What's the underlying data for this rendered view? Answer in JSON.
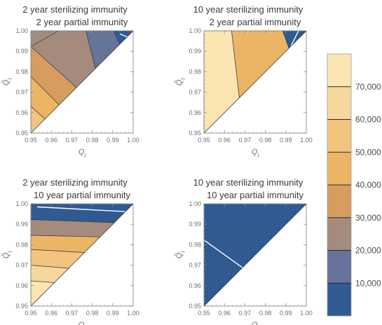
{
  "figure": {
    "colorbar": {
      "min": 0,
      "max": 80000,
      "tick_labels": [
        "10,000",
        "20,000",
        "30,000",
        "40,000",
        "50,000",
        "60,000",
        "70,000"
      ],
      "tick_values": [
        10000,
        20000,
        30000,
        40000,
        50000,
        60000,
        70000
      ],
      "colors": [
        "#2f5a92",
        "#66739a",
        "#a58b7d",
        "#d79d5e",
        "#ecb565",
        "#f1c57e",
        "#f6d79c",
        "#fbe6b3"
      ]
    }
  },
  "chart_data": [
    {
      "type": "heatmap",
      "subtype": "contour",
      "title": "2 year sterilizing immunity",
      "subtitle": "2 year partial immunity",
      "xlabel": "Q_l",
      "ylabel": "Q̃_l",
      "xlim": [
        0.95,
        1.0
      ],
      "ylim": [
        0.95,
        1.0
      ],
      "xticks": [
        "0.95",
        "0.96",
        "0.97",
        "0.98",
        "0.99",
        "1.00"
      ],
      "yticks": [
        "0.95",
        "0.96",
        "0.97",
        "0.98",
        "0.99",
        "1.00"
      ],
      "domain": "y >= x",
      "bands": [
        {
          "range": [
            0,
            10000
          ],
          "polygon": [
            [
              0.9904,
              1.0
            ],
            [
              1.0,
              1.0
            ],
            [
              0.9935,
              0.9935
            ]
          ]
        },
        {
          "range": [
            10000,
            20000
          ],
          "polygon": [
            [
              0.9769,
              1.0
            ],
            [
              0.9904,
              1.0
            ],
            [
              0.9935,
              0.9935
            ],
            [
              0.9815,
              0.9815
            ]
          ]
        },
        {
          "range": [
            20000,
            30000
          ],
          "polygon": [
            [
              0.9635,
              1.0
            ],
            [
              0.9769,
              1.0
            ],
            [
              0.9815,
              0.9815
            ],
            [
              0.9723,
              0.9723
            ],
            [
              0.95,
              0.9923
            ]
          ]
        },
        {
          "range": [
            30000,
            40000
          ],
          "polygon": [
            [
              0.95,
              0.9923
            ],
            [
              0.9723,
              0.9723
            ],
            [
              0.9638,
              0.9638
            ],
            [
              0.95,
              0.9777
            ]
          ]
        },
        {
          "range": [
            40000,
            50000
          ],
          "polygon": [
            [
              0.95,
              0.9777
            ],
            [
              0.9638,
              0.9638
            ],
            [
              0.9569,
              0.9569
            ],
            [
              0.95,
              0.9631
            ]
          ]
        },
        {
          "range": [
            50000,
            60000
          ],
          "polygon": [
            [
              0.95,
              0.9631
            ],
            [
              0.9569,
              0.9569
            ],
            [
              0.95,
              0.95
            ]
          ]
        },
        {
          "range": [
            60000,
            70000
          ],
          "polygon": [
            [
              0.95,
              0.95
            ],
            [
              0.95,
              0.95
            ],
            [
              0.95,
              0.95
            ]
          ]
        },
        {
          "range": [
            70000,
            80000
          ],
          "polygon": [
            [
              0.95,
              0.95
            ],
            [
              0.95,
              0.95
            ],
            [
              0.95,
              0.95
            ]
          ]
        },
        {
          "range": [
            20000,
            30000
          ],
          "polygon": [
            [
              0.95,
              1.0
            ],
            [
              0.9635,
              1.0
            ],
            [
              0.95,
              0.9923
            ]
          ]
        }
      ],
      "white_lines": [
        [
          [
            0.9935,
            0.9985
          ],
          [
            1.0,
            0.9958
          ]
        ]
      ]
    },
    {
      "type": "heatmap",
      "subtype": "contour",
      "title": "10 year sterilizing immunity",
      "subtitle": "2 year partial immunity",
      "xlabel": "Q_l",
      "ylabel": "Q̃_l",
      "xlim": [
        0.95,
        1.0
      ],
      "ylim": [
        0.95,
        1.0
      ],
      "xticks": [
        "0.95",
        "0.96",
        "0.97",
        "0.98",
        "0.99",
        "1.00"
      ],
      "yticks": [
        "0.95",
        "0.96",
        "0.97",
        "0.98",
        "0.99",
        "1.00"
      ],
      "domain": "y >= x",
      "bands": [
        {
          "range": [
            70000,
            80000
          ],
          "polygon": [
            [
              0.95,
              1.0
            ],
            [
              0.9635,
              1.0
            ],
            [
              0.9673,
              0.9673
            ],
            [
              0.95,
              0.95
            ]
          ]
        },
        {
          "range": [
            40000,
            50000
          ],
          "polygon": [
            [
              0.9635,
              1.0
            ],
            [
              0.9885,
              1.0
            ],
            [
              0.9915,
              0.9915
            ],
            [
              0.9673,
              0.9673
            ]
          ]
        },
        {
          "range": [
            0,
            10000
          ],
          "polygon": [
            [
              0.9885,
              1.0
            ],
            [
              1.0,
              1.0
            ],
            [
              0.9915,
              0.9915
            ]
          ]
        }
      ],
      "white_lines": [
        [
          [
            0.9962,
            1.0
          ],
          [
            0.9925,
            0.9925
          ]
        ]
      ]
    },
    {
      "type": "heatmap",
      "subtype": "contour",
      "title": "2 year sterilizing immunity",
      "subtitle": "10 year partial immunity",
      "xlabel": "Q_l",
      "ylabel": "Q̃_l",
      "xlim": [
        0.95,
        1.0
      ],
      "ylim": [
        0.95,
        1.0
      ],
      "xticks": [
        "0.95",
        "0.96",
        "0.97",
        "0.98",
        "0.99",
        "1.00"
      ],
      "yticks": [
        "0.95",
        "0.96",
        "0.97",
        "0.98",
        "0.99",
        "1.00"
      ],
      "domain": "y >= x",
      "bands": [
        {
          "range": [
            0,
            10000
          ],
          "polygon": [
            [
              0.95,
              1.0
            ],
            [
              1.0,
              1.0
            ],
            [
              0.9908,
              0.9908
            ],
            [
              0.95,
              0.9923
            ]
          ]
        },
        {
          "range": [
            20000,
            30000
          ],
          "polygon": [
            [
              0.95,
              0.9923
            ],
            [
              0.9908,
              0.9908
            ],
            [
              0.9838,
              0.9838
            ],
            [
              0.95,
              0.9846
            ]
          ]
        },
        {
          "range": [
            40000,
            50000
          ],
          "polygon": [
            [
              0.95,
              0.9846
            ],
            [
              0.9838,
              0.9838
            ],
            [
              0.9762,
              0.9762
            ],
            [
              0.95,
              0.9777
            ]
          ]
        },
        {
          "range": [
            50000,
            60000
          ],
          "polygon": [
            [
              0.95,
              0.9777
            ],
            [
              0.9762,
              0.9762
            ],
            [
              0.9685,
              0.9685
            ],
            [
              0.95,
              0.97
            ]
          ]
        },
        {
          "range": [
            60000,
            70000
          ],
          "polygon": [
            [
              0.95,
              0.97
            ],
            [
              0.9685,
              0.9685
            ],
            [
              0.9615,
              0.9615
            ],
            [
              0.95,
              0.9623
            ]
          ]
        },
        {
          "range": [
            70000,
            80000
          ],
          "polygon": [
            [
              0.95,
              0.9623
            ],
            [
              0.9615,
              0.9615
            ],
            [
              0.95,
              0.95
            ]
          ]
        }
      ],
      "white_lines": [
        [
          [
            0.9531,
            0.9985
          ],
          [
            0.9962,
            0.9962
          ]
        ]
      ]
    },
    {
      "type": "heatmap",
      "subtype": "contour",
      "title": "10 year sterilizing immunity",
      "subtitle": "10 year partial immunity",
      "xlabel": "Q_l",
      "ylabel": "Q̃_l",
      "xlim": [
        0.95,
        1.0
      ],
      "ylim": [
        0.95,
        1.0
      ],
      "xticks": [
        "0.95",
        "0.96",
        "0.97",
        "0.98",
        "0.99",
        "1.00"
      ],
      "yticks": [
        "0.95",
        "0.96",
        "0.97",
        "0.98",
        "0.99",
        "1.00"
      ],
      "domain": "y >= x",
      "bands": [
        {
          "range": [
            0,
            10000
          ],
          "polygon": [
            [
              0.95,
              1.0
            ],
            [
              1.0,
              1.0
            ],
            [
              0.95,
              0.95
            ]
          ]
        }
      ],
      "white_lines": [
        [
          [
            0.95,
            0.9823
          ],
          [
            0.9688,
            0.9688
          ]
        ]
      ]
    }
  ]
}
